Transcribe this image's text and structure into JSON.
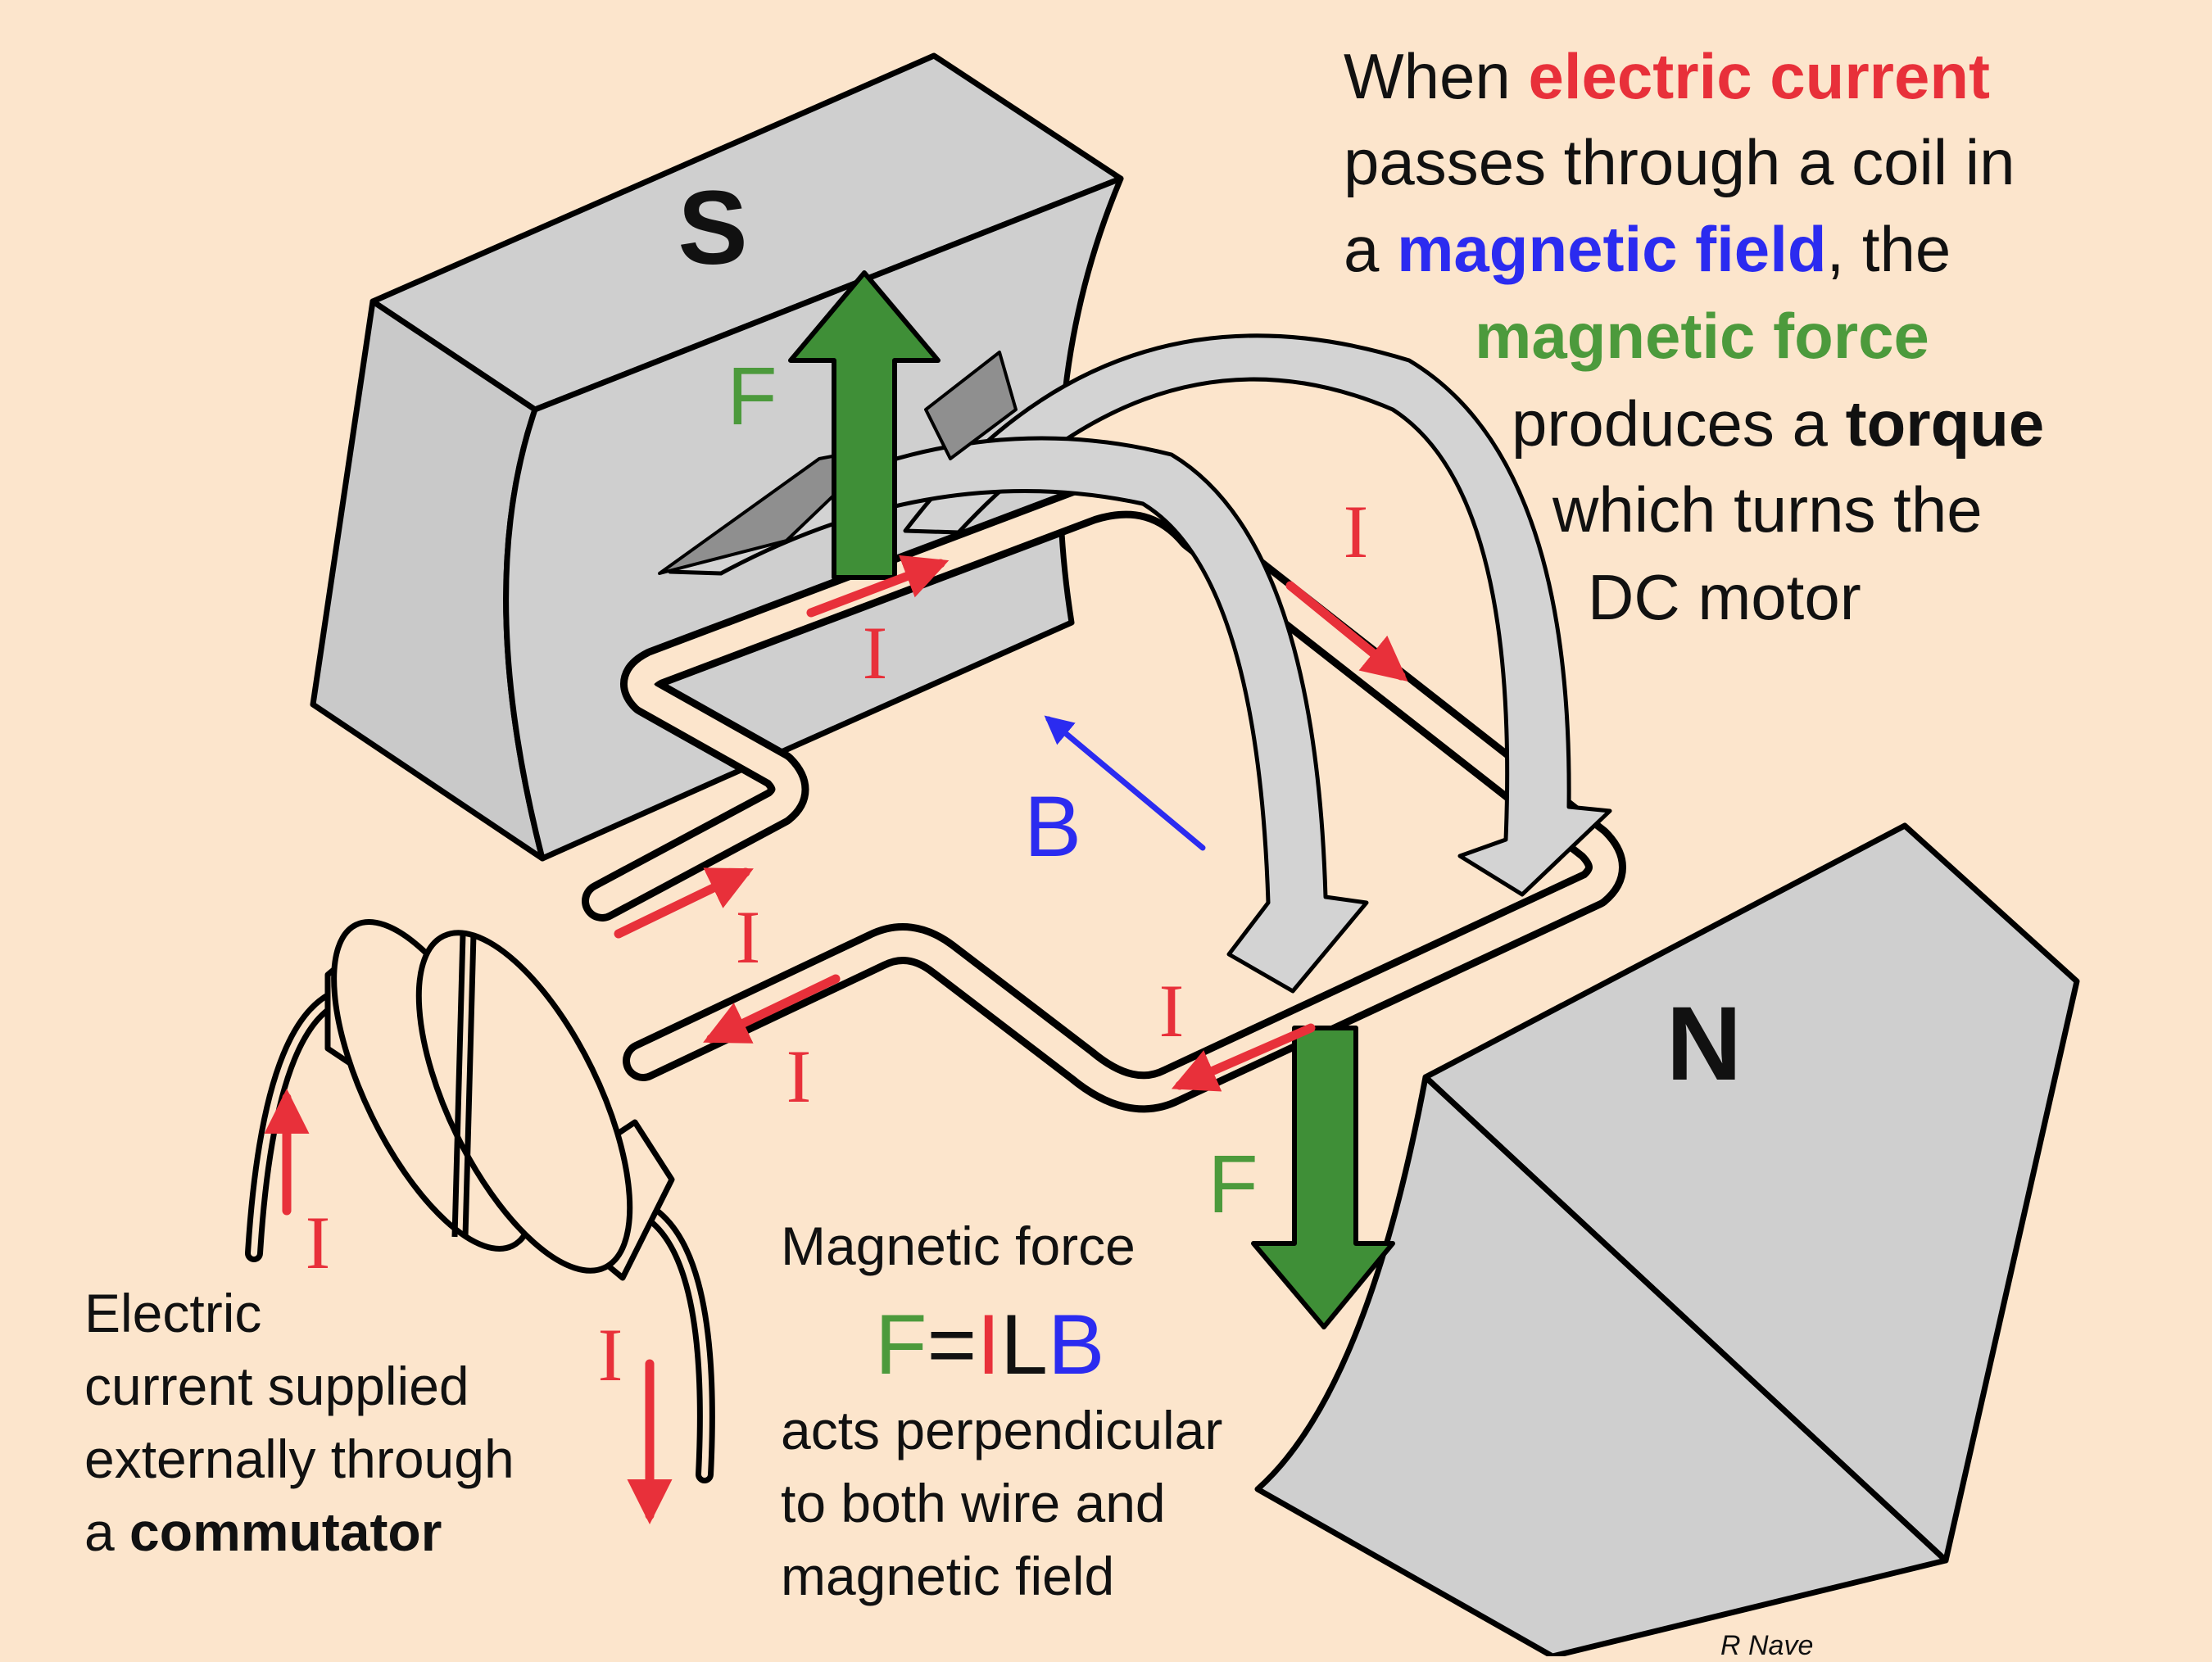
{
  "magnets": {
    "south": "S",
    "north": "N"
  },
  "symbols": {
    "force": "F",
    "current": "I",
    "field": "B"
  },
  "colors": {
    "background": "#fce5cc",
    "magnet": "#cfcfcf",
    "current": "#e8303a",
    "field": "#2b2bf0",
    "force": "#4c9a3c",
    "rotation_arrow": "#d3d3d3"
  },
  "caption_top": {
    "l1_a": "When ",
    "l1_b": "electric current",
    "l2": "passes through a  coil in",
    "l3_a": "a ",
    "l3_b": "magnetic field",
    "l3_c": ", the",
    "l4": "magnetic force",
    "l5_a": "produces a ",
    "l5_b": "torque",
    "l6": "which turns the",
    "l7": "DC motor"
  },
  "caption_left": {
    "l1": "Electric",
    "l2": "current supplied",
    "l3": "externally through",
    "l4_a": "a ",
    "l4_b": "commutator"
  },
  "caption_bottom": {
    "l1": "Magnetic force",
    "f": "F",
    "eq": "=",
    "i": "I",
    "l": "L",
    "b": "B",
    "l2": "acts perpendicular",
    "l3": "to both wire and",
    "l4": "magnetic field"
  },
  "credit": "R Nave"
}
